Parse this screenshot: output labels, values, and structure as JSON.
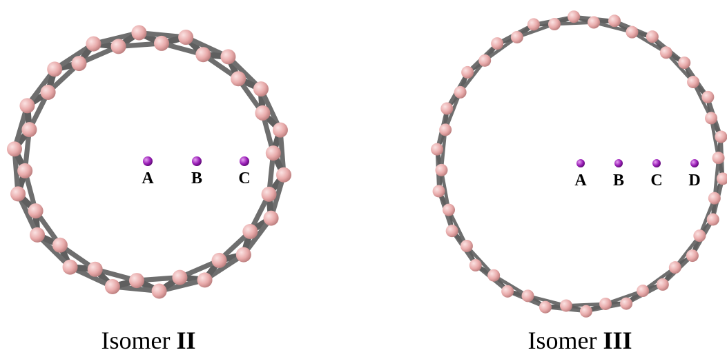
{
  "panels": [
    {
      "caption": {
        "prefix": "Isomer",
        "numeral": "II"
      },
      "sites": [
        "A",
        "B",
        "C"
      ]
    },
    {
      "caption": {
        "prefix": "Isomer",
        "numeral": "III"
      },
      "sites": [
        "A",
        "B",
        "C",
        "D"
      ]
    }
  ]
}
